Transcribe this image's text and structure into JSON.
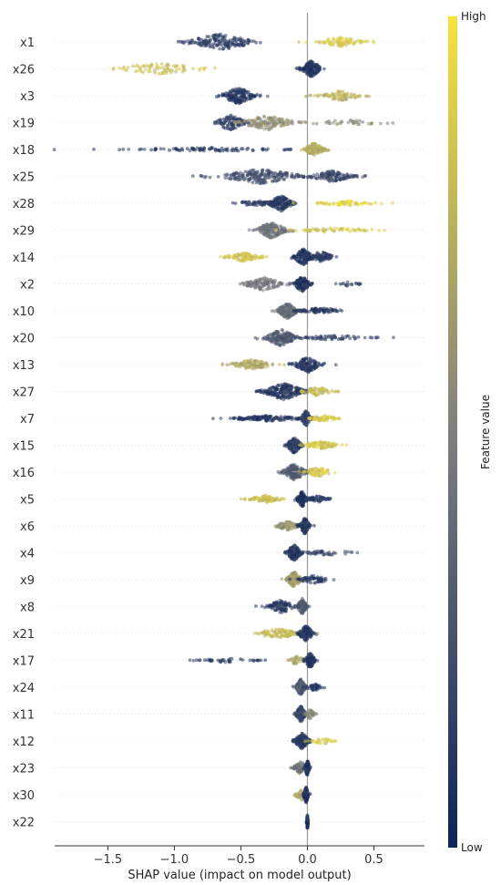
{
  "chart_data": {
    "type": "scatter",
    "subtype": "shap-beeswarm",
    "xlabel": "SHAP value (impact on model output)",
    "xlim": [
      -1.9,
      0.88
    ],
    "xticks": [
      -1.5,
      -1.0,
      -0.5,
      0.0,
      0.5
    ],
    "xtick_labels": [
      "−1.5",
      "−1.0",
      "−0.5",
      "0.0",
      "0.5"
    ],
    "colorbar": {
      "label": "Feature value",
      "high_label": "High",
      "low_label": "Low",
      "low_color": "#0d2357",
      "mid_color": "#7f7f7f",
      "high_color": "#f5e33d"
    },
    "zero_line_color": "#9a9a9a",
    "features": [
      {
        "name": "x1",
        "clusters": [
          {
            "c": -0.65,
            "s": 0.14,
            "n": 160,
            "v": 0.12,
            "w": 1
          },
          {
            "c": 0.25,
            "s": 0.09,
            "n": 90,
            "v": 0.88,
            "w": 0.6
          }
        ]
      },
      {
        "name": "x26",
        "clusters": [
          {
            "c": -1.1,
            "s": 0.18,
            "n": 80,
            "v": 0.82,
            "w": 0.7
          },
          {
            "c": 0.03,
            "s": 0.04,
            "n": 160,
            "v": 0.1,
            "w": 1
          }
        ]
      },
      {
        "name": "x3",
        "clusters": [
          {
            "c": -0.52,
            "s": 0.07,
            "n": 150,
            "v": 0.1,
            "w": 1
          },
          {
            "c": 0.25,
            "s": 0.09,
            "n": 80,
            "v": 0.75,
            "w": 0.6
          }
        ]
      },
      {
        "name": "x19",
        "clusters": [
          {
            "c": -0.58,
            "s": 0.06,
            "n": 110,
            "v": 0.15,
            "w": 1
          },
          {
            "c": -0.3,
            "s": 0.11,
            "n": 150,
            "v": 0.58,
            "w": 0.9
          },
          {
            "c": 0.3,
            "s": 0.2,
            "n": 40,
            "v": 0.55,
            "w": 0.3
          }
        ]
      },
      {
        "name": "x18",
        "clusters": [
          {
            "c": -0.7,
            "s": 0.32,
            "n": 90,
            "v": 0.1,
            "w": 0.25
          },
          {
            "c": 0.05,
            "s": 0.04,
            "n": 120,
            "v": 0.72,
            "w": 0.8
          }
        ]
      },
      {
        "name": "x25",
        "clusters": [
          {
            "c": -0.35,
            "s": 0.17,
            "n": 200,
            "v": 0.22,
            "w": 0.9
          },
          {
            "c": 0.18,
            "s": 0.09,
            "n": 120,
            "v": 0.2,
            "w": 0.7
          }
        ]
      },
      {
        "name": "x28",
        "clusters": [
          {
            "c": -0.2,
            "s": 0.05,
            "n": 150,
            "v": 0.12,
            "w": 1
          },
          {
            "c": -0.4,
            "s": 0.08,
            "n": 50,
            "v": 0.15,
            "w": 0.4
          },
          {
            "c": 0.3,
            "s": 0.12,
            "n": 70,
            "v": 0.92,
            "w": 0.3
          }
        ]
      },
      {
        "name": "x29",
        "clusters": [
          {
            "c": -0.27,
            "s": 0.06,
            "n": 160,
            "v": 0.42,
            "w": 1
          },
          {
            "c": 0.2,
            "s": 0.18,
            "n": 60,
            "v": 0.85,
            "w": 0.3
          }
        ]
      },
      {
        "name": "x14",
        "clusters": [
          {
            "c": -0.48,
            "s": 0.07,
            "n": 90,
            "v": 0.85,
            "w": 0.55
          },
          {
            "c": -0.03,
            "s": 0.04,
            "n": 140,
            "v": 0.1,
            "w": 1
          },
          {
            "c": 0.1,
            "s": 0.05,
            "n": 80,
            "v": 0.12,
            "w": 0.7
          }
        ]
      },
      {
        "name": "x2",
        "clusters": [
          {
            "c": -0.33,
            "s": 0.08,
            "n": 120,
            "v": 0.45,
            "w": 0.8
          },
          {
            "c": -0.04,
            "s": 0.03,
            "n": 130,
            "v": 0.1,
            "w": 1
          },
          {
            "c": 0.3,
            "s": 0.06,
            "n": 20,
            "v": 0.2,
            "w": 0.25
          }
        ]
      },
      {
        "name": "x10",
        "clusters": [
          {
            "c": -0.15,
            "s": 0.04,
            "n": 170,
            "v": 0.4,
            "w": 1
          },
          {
            "c": 0.1,
            "s": 0.1,
            "n": 80,
            "v": 0.12,
            "w": 0.35
          }
        ]
      },
      {
        "name": "x20",
        "clusters": [
          {
            "c": -0.2,
            "s": 0.07,
            "n": 170,
            "v": 0.3,
            "w": 1
          },
          {
            "c": 0.2,
            "s": 0.14,
            "n": 60,
            "v": 0.15,
            "w": 0.3
          }
        ]
      },
      {
        "name": "x13",
        "clusters": [
          {
            "c": -0.42,
            "s": 0.09,
            "n": 110,
            "v": 0.7,
            "w": 0.6
          },
          {
            "c": 0.0,
            "s": 0.05,
            "n": 140,
            "v": 0.12,
            "w": 1
          }
        ]
      },
      {
        "name": "x27",
        "clusters": [
          {
            "c": -0.18,
            "s": 0.09,
            "n": 200,
            "v": 0.1,
            "w": 1
          },
          {
            "c": 0.08,
            "s": 0.06,
            "n": 60,
            "v": 0.8,
            "w": 0.6
          }
        ]
      },
      {
        "name": "x7",
        "clusters": [
          {
            "c": -0.3,
            "s": 0.16,
            "n": 140,
            "v": 0.1,
            "w": 0.35
          },
          {
            "c": -0.01,
            "s": 0.02,
            "n": 90,
            "v": 0.15,
            "w": 1
          },
          {
            "c": 0.12,
            "s": 0.06,
            "n": 60,
            "v": 0.88,
            "w": 0.35
          }
        ]
      },
      {
        "name": "x15",
        "clusters": [
          {
            "c": -0.1,
            "s": 0.03,
            "n": 140,
            "v": 0.15,
            "w": 1
          },
          {
            "c": 0.1,
            "s": 0.08,
            "n": 90,
            "v": 0.85,
            "w": 0.45
          }
        ]
      },
      {
        "name": "x16",
        "clusters": [
          {
            "c": -0.1,
            "s": 0.05,
            "n": 150,
            "v": 0.3,
            "w": 1
          },
          {
            "c": 0.08,
            "s": 0.06,
            "n": 70,
            "v": 0.88,
            "w": 0.6
          }
        ]
      },
      {
        "name": "x5",
        "clusters": [
          {
            "c": -0.32,
            "s": 0.07,
            "n": 80,
            "v": 0.82,
            "w": 0.45
          },
          {
            "c": -0.04,
            "s": 0.02,
            "n": 130,
            "v": 0.1,
            "w": 1
          },
          {
            "c": 0.08,
            "s": 0.05,
            "n": 60,
            "v": 0.12,
            "w": 0.4
          }
        ]
      },
      {
        "name": "x6",
        "clusters": [
          {
            "c": -0.15,
            "s": 0.05,
            "n": 80,
            "v": 0.6,
            "w": 0.55
          },
          {
            "c": -0.02,
            "s": 0.02,
            "n": 120,
            "v": 0.12,
            "w": 1
          }
        ]
      },
      {
        "name": "x4",
        "clusters": [
          {
            "c": -0.1,
            "s": 0.03,
            "n": 150,
            "v": 0.12,
            "w": 1
          },
          {
            "c": 0.15,
            "s": 0.12,
            "n": 40,
            "v": 0.2,
            "w": 0.3
          }
        ]
      },
      {
        "name": "x9",
        "clusters": [
          {
            "c": -0.1,
            "s": 0.03,
            "n": 150,
            "v": 0.65,
            "w": 1
          },
          {
            "c": 0.05,
            "s": 0.06,
            "n": 60,
            "v": 0.12,
            "w": 0.5
          }
        ]
      },
      {
        "name": "x8",
        "clusters": [
          {
            "c": -0.2,
            "s": 0.06,
            "n": 100,
            "v": 0.12,
            "w": 0.8
          },
          {
            "c": -0.04,
            "s": 0.02,
            "n": 100,
            "v": 0.3,
            "w": 1
          }
        ]
      },
      {
        "name": "x21",
        "clusters": [
          {
            "c": -0.22,
            "s": 0.09,
            "n": 110,
            "v": 0.78,
            "w": 0.6
          },
          {
            "c": -0.01,
            "s": 0.03,
            "n": 120,
            "v": 0.12,
            "w": 1
          }
        ]
      },
      {
        "name": "x17",
        "clusters": [
          {
            "c": -0.6,
            "s": 0.12,
            "n": 40,
            "v": 0.1,
            "w": 0.25
          },
          {
            "c": -0.08,
            "s": 0.04,
            "n": 40,
            "v": 0.7,
            "w": 0.5
          },
          {
            "c": 0.02,
            "s": 0.02,
            "n": 110,
            "v": 0.12,
            "w": 1
          }
        ]
      },
      {
        "name": "x24",
        "clusters": [
          {
            "c": -0.05,
            "s": 0.02,
            "n": 140,
            "v": 0.3,
            "w": 1
          },
          {
            "c": 0.05,
            "s": 0.03,
            "n": 40,
            "v": 0.1,
            "w": 0.5
          }
        ]
      },
      {
        "name": "x11",
        "clusters": [
          {
            "c": -0.05,
            "s": 0.02,
            "n": 140,
            "v": 0.2,
            "w": 1
          },
          {
            "c": 0.02,
            "s": 0.02,
            "n": 40,
            "v": 0.55,
            "w": 0.6
          }
        ]
      },
      {
        "name": "x12",
        "clusters": [
          {
            "c": -0.04,
            "s": 0.03,
            "n": 150,
            "v": 0.12,
            "w": 1
          },
          {
            "c": 0.12,
            "s": 0.05,
            "n": 30,
            "v": 0.88,
            "w": 0.4
          }
        ]
      },
      {
        "name": "x23",
        "clusters": [
          {
            "c": -0.05,
            "s": 0.03,
            "n": 80,
            "v": 0.45,
            "w": 0.8
          },
          {
            "c": 0.0,
            "s": 0.01,
            "n": 70,
            "v": 0.1,
            "w": 1
          }
        ]
      },
      {
        "name": "x30",
        "clusters": [
          {
            "c": -0.04,
            "s": 0.03,
            "n": 50,
            "v": 0.7,
            "w": 0.7
          },
          {
            "c": -0.01,
            "s": 0.01,
            "n": 80,
            "v": 0.1,
            "w": 1
          }
        ]
      },
      {
        "name": "x22",
        "clusters": [
          {
            "c": 0.0,
            "s": 0.003,
            "n": 60,
            "v": 0.1,
            "w": 1
          }
        ]
      }
    ]
  }
}
